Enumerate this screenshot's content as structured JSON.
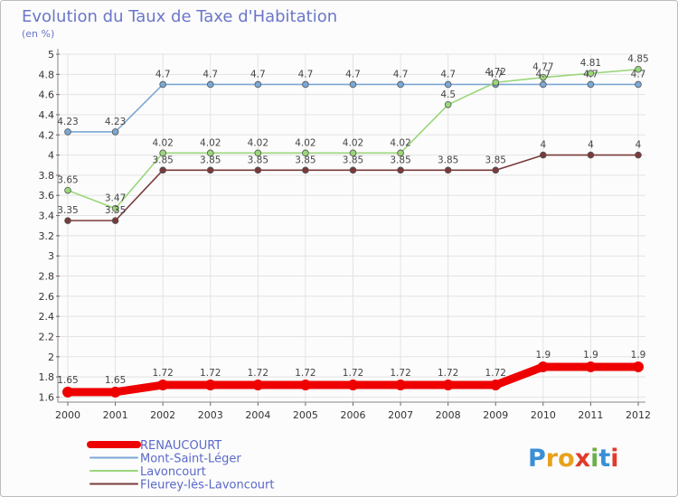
{
  "chart_data": {
    "type": "line",
    "title": "Evolution du Taux de Taxe d'Habitation",
    "subtitle": "(en %)",
    "xlabel": "",
    "ylabel": "",
    "ylim": [
      1.55,
      5
    ],
    "grid": true,
    "categories": [
      "2000",
      "2001",
      "2002",
      "2003",
      "2004",
      "2005",
      "2006",
      "2007",
      "2008",
      "2009",
      "2010",
      "2011",
      "2012"
    ],
    "y_ticks": [
      "1.6",
      "1.8",
      "2",
      "2.2",
      "2.4",
      "2.6",
      "2.8",
      "3",
      "3.2",
      "3.4",
      "3.6",
      "3.8",
      "4",
      "4.2",
      "4.4",
      "4.6",
      "4.8",
      "5"
    ],
    "series": [
      {
        "name": "RENAUCOURT",
        "color": "#ee0000",
        "values": [
          1.65,
          1.65,
          1.72,
          1.72,
          1.72,
          1.72,
          1.72,
          1.72,
          1.72,
          1.72,
          1.9,
          1.9,
          1.9
        ],
        "labels": [
          "1.65",
          "1.65",
          "1.72",
          "1.72",
          "1.72",
          "1.72",
          "1.72",
          "1.72",
          "1.72",
          "1.72",
          "1.9",
          "1.9",
          "1.9"
        ]
      },
      {
        "name": "Mont-Saint-Léger",
        "color": "#7ba8d6",
        "values": [
          4.23,
          4.23,
          4.7,
          4.7,
          4.7,
          4.7,
          4.7,
          4.7,
          4.7,
          4.7,
          4.7,
          4.7,
          4.7
        ],
        "labels": [
          "4.23",
          "4.23",
          "4.7",
          "4.7",
          "4.7",
          "4.7",
          "4.7",
          "4.7",
          "4.7",
          "4.7",
          "4.7",
          "4.7",
          "4.7"
        ]
      },
      {
        "name": "Lavoncourt",
        "color": "#9ad67a",
        "values": [
          3.65,
          3.47,
          4.02,
          4.02,
          4.02,
          4.02,
          4.02,
          4.02,
          4.5,
          4.72,
          4.77,
          4.81,
          4.85
        ],
        "labels": [
          "3.65",
          "3.47",
          "4.02",
          "4.02",
          "4.02",
          "4.02",
          "4.02",
          "4.02",
          "4.5",
          "4.72",
          "4.77",
          "4.81",
          "4.85"
        ]
      },
      {
        "name": "Fleurey-lès-Lavoncourt",
        "color": "#7a3a3a",
        "values": [
          3.35,
          3.35,
          3.85,
          3.85,
          3.85,
          3.85,
          3.85,
          3.85,
          3.85,
          3.85,
          4,
          4,
          4
        ],
        "labels": [
          "3.35",
          "3.35",
          "3.85",
          "3.85",
          "3.85",
          "3.85",
          "3.85",
          "3.85",
          "3.85",
          "3.85",
          "4",
          "4",
          "4"
        ]
      }
    ]
  },
  "logo": {
    "text": "Proxiti",
    "letters": [
      "P",
      "r",
      "o",
      "x",
      "i",
      "t",
      "i"
    ]
  }
}
